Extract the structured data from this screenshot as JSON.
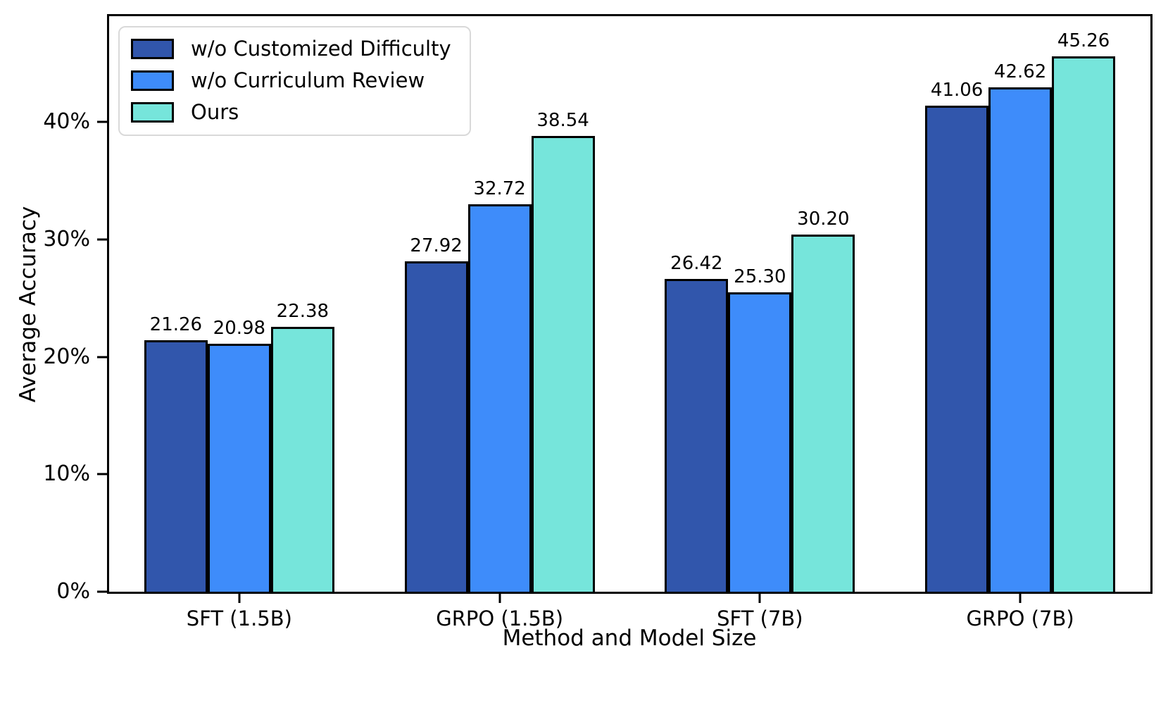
{
  "chart_data": {
    "type": "bar",
    "title": "",
    "xlabel": "Method and Model Size",
    "ylabel": "Average Accuracy",
    "categories": [
      "SFT (1.5B)",
      "GRPO (1.5B)",
      "SFT (7B)",
      "GRPO (7B)"
    ],
    "series": [
      {
        "name": "w/o Customized Difficulty",
        "color": "#3156AC",
        "values": [
          21.26,
          27.92,
          26.42,
          41.06
        ]
      },
      {
        "name": "w/o Curriculum Review",
        "color": "#3E8CFA",
        "values": [
          20.98,
          32.72,
          25.3,
          42.62
        ]
      },
      {
        "name": "Ours",
        "color": "#76E5DB",
        "values": [
          22.38,
          38.54,
          30.2,
          45.26
        ]
      }
    ],
    "value_label_decimals": 2,
    "y_ticks": [
      {
        "value": 0,
        "label": "0%"
      },
      {
        "value": 10,
        "label": "10%"
      },
      {
        "value": 20,
        "label": "20%"
      },
      {
        "value": 30,
        "label": "30%"
      },
      {
        "value": 40,
        "label": "40%"
      }
    ],
    "ylim": [
      0,
      49
    ],
    "grid": false,
    "legend_position": "upper left",
    "bar_edge_color": "#000000"
  }
}
